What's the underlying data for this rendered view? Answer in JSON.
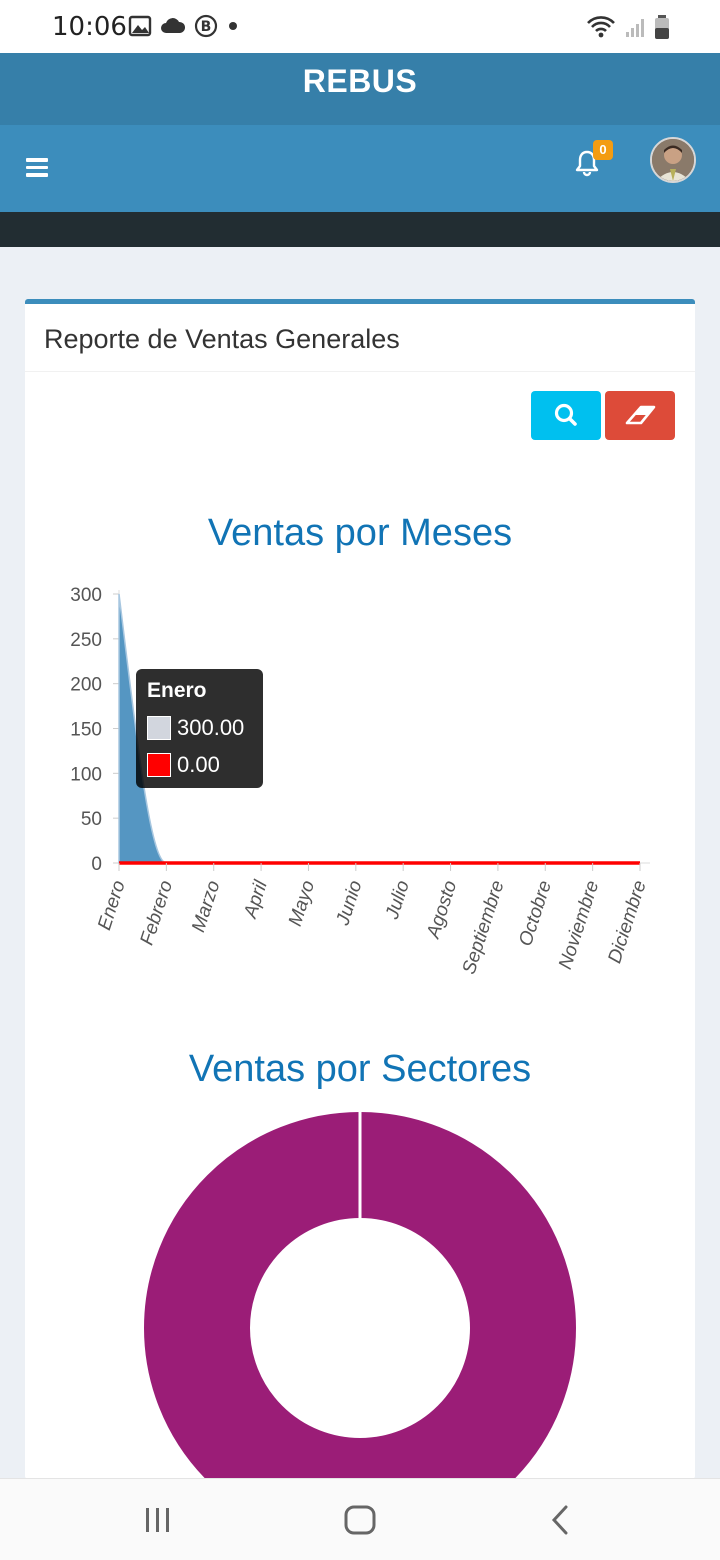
{
  "status_bar": {
    "time": "10:06"
  },
  "app": {
    "brand": "REBUS",
    "notifications_count": "0"
  },
  "report": {
    "title": "Reporte de Ventas Generales",
    "search_button_icon": "search-icon",
    "clear_button_icon": "eraser-icon"
  },
  "colors": {
    "header_dark": "#367fa9",
    "header": "#3c8dbc",
    "sidebar_dark": "#222d32",
    "chart_title": "#1174b5",
    "search_button": "#00c0ef",
    "clear_button": "#dd4b39",
    "area_series": "#5596c2",
    "line_series": "#ff0000",
    "donut": "#9b1d77"
  },
  "chart_data": [
    {
      "type": "area",
      "title": "Ventas por Meses",
      "categories": [
        "Enero",
        "Febrero",
        "Marzo",
        "April",
        "Mayo",
        "Junio",
        "Julio",
        "Agosto",
        "Septiembre",
        "Octobre",
        "Noviembre",
        "Diciembre"
      ],
      "series": [
        {
          "values": [
            300,
            0,
            0,
            0,
            0,
            0,
            0,
            0,
            0,
            0,
            0,
            0
          ],
          "color": "#5596c2"
        },
        {
          "values": [
            0,
            0,
            0,
            0,
            0,
            0,
            0,
            0,
            0,
            0,
            0,
            0
          ],
          "color": "#ff0000"
        }
      ],
      "ylim": [
        0,
        300
      ],
      "yticks": [
        0,
        50,
        100,
        150,
        200,
        250,
        300
      ],
      "tooltip": {
        "title": "Enero",
        "values": [
          "300.00",
          "0.00"
        ]
      }
    },
    {
      "type": "pie",
      "title": "Ventas por Sectores",
      "values": [
        100
      ],
      "colors": [
        "#9b1d77"
      ]
    }
  ]
}
